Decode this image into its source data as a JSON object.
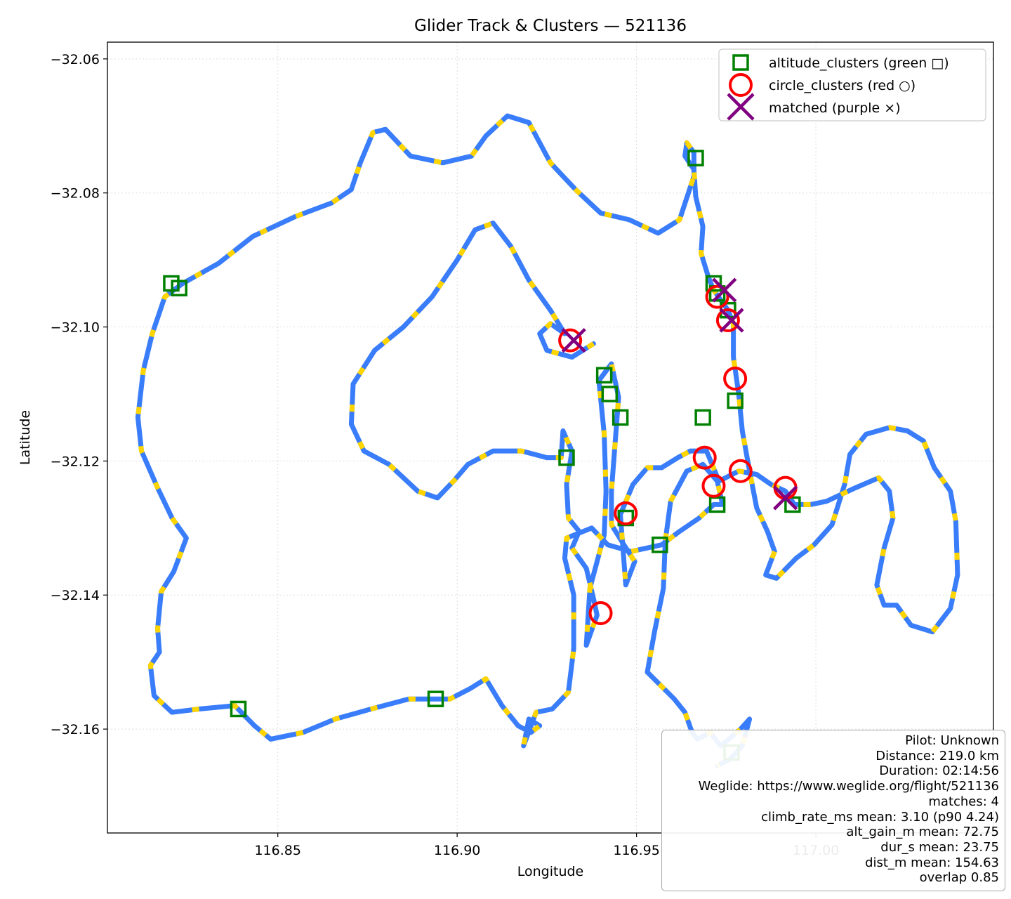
{
  "chart_data": {
    "type": "scatter",
    "title": "Glider Track & Clusters — 521136",
    "xlabel": "Longitude",
    "ylabel": "Latitude",
    "xlim": [
      116.8025,
      117.0495
    ],
    "ylim": [
      -32.1755,
      -32.0575
    ],
    "xticks": [
      "116.85",
      "116.90",
      "116.95",
      "117.00"
    ],
    "xtick_values": [
      116.85,
      116.9,
      116.95,
      117.0
    ],
    "yticks": [
      "−32.06",
      "−32.08",
      "−32.10",
      "−32.12",
      "−32.14",
      "−32.16"
    ],
    "ytick_values": [
      -32.06,
      -32.08,
      -32.1,
      -32.12,
      -32.14,
      -32.16
    ],
    "grid": true,
    "legend_position": "upper right",
    "track": {
      "colors": [
        "#3a7dfa",
        "#ffd500"
      ],
      "points": [
        [
          116.938,
          -32.1025
        ],
        [
          116.932,
          -32.1045
        ],
        [
          116.925,
          -32.1035
        ],
        [
          116.923,
          -32.101
        ],
        [
          116.926,
          -32.0995
        ],
        [
          116.93,
          -32.101
        ],
        [
          116.926,
          -32.0975
        ],
        [
          116.92,
          -32.093
        ],
        [
          116.915,
          -32.088
        ],
        [
          116.91,
          -32.0845
        ],
        [
          116.905,
          -32.0855
        ],
        [
          116.9,
          -32.09
        ],
        [
          116.893,
          -32.0955
        ],
        [
          116.885,
          -32.1
        ],
        [
          116.877,
          -32.1035
        ],
        [
          116.871,
          -32.1085
        ],
        [
          116.8705,
          -32.1145
        ],
        [
          116.874,
          -32.1185
        ],
        [
          116.881,
          -32.1205
        ],
        [
          116.889,
          -32.1245
        ],
        [
          116.8945,
          -32.1255
        ],
        [
          116.899,
          -32.123
        ],
        [
          116.903,
          -32.1205
        ],
        [
          116.91,
          -32.1185
        ],
        [
          116.918,
          -32.1185
        ],
        [
          116.925,
          -32.1195
        ],
        [
          116.929,
          -32.1195
        ],
        [
          116.9295,
          -32.1155
        ],
        [
          116.932,
          -32.1185
        ],
        [
          116.9305,
          -32.1235
        ],
        [
          116.931,
          -32.1285
        ],
        [
          116.934,
          -32.1305
        ],
        [
          116.932,
          -32.133
        ],
        [
          116.936,
          -32.136
        ],
        [
          116.938,
          -32.1405
        ],
        [
          116.939,
          -32.143
        ],
        [
          116.936,
          -32.1475
        ],
        [
          116.937,
          -32.139
        ],
        [
          116.941,
          -32.131
        ],
        [
          116.9415,
          -32.1245
        ],
        [
          116.941,
          -32.116
        ],
        [
          116.9395,
          -32.108
        ],
        [
          116.943,
          -32.1055
        ],
        [
          116.945,
          -32.1105
        ],
        [
          116.944,
          -32.1175
        ],
        [
          116.943,
          -32.1245
        ],
        [
          116.943,
          -32.1295
        ],
        [
          116.9465,
          -32.1325
        ],
        [
          116.9495,
          -32.135
        ],
        [
          116.947,
          -32.1385
        ],
        [
          116.9455,
          -32.128
        ],
        [
          116.949,
          -32.1235
        ],
        [
          116.953,
          -32.121
        ],
        [
          116.957,
          -32.121
        ],
        [
          116.9615,
          -32.1195
        ],
        [
          116.965,
          -32.1185
        ],
        [
          116.9695,
          -32.1185
        ],
        [
          116.973,
          -32.123
        ],
        [
          116.9785,
          -32.1215
        ],
        [
          116.9835,
          -32.122
        ],
        [
          116.9875,
          -32.1235
        ],
        [
          116.9915,
          -32.1245
        ],
        [
          116.994,
          -32.1265
        ],
        [
          116.9985,
          -32.1265
        ],
        [
          117.003,
          -32.126
        ],
        [
          117.011,
          -32.124
        ],
        [
          117.0175,
          -32.1225
        ],
        [
          117.0205,
          -32.1245
        ],
        [
          117.0215,
          -32.1285
        ],
        [
          117.019,
          -32.133
        ],
        [
          117.017,
          -32.1385
        ],
        [
          117.019,
          -32.1415
        ],
        [
          117.0225,
          -32.1415
        ],
        [
          117.0265,
          -32.1445
        ],
        [
          117.0325,
          -32.1455
        ],
        [
          117.0375,
          -32.142
        ],
        [
          117.0395,
          -32.137
        ],
        [
          117.039,
          -32.129
        ],
        [
          117.0375,
          -32.1245
        ],
        [
          117.033,
          -32.121
        ],
        [
          117.03,
          -32.117
        ],
        [
          117.0255,
          -32.1155
        ],
        [
          117.0205,
          -32.115
        ],
        [
          117.014,
          -32.116
        ],
        [
          117.0095,
          -32.119
        ],
        [
          117.008,
          -32.1235
        ],
        [
          117.0045,
          -32.1295
        ],
        [
          116.9995,
          -32.1325
        ],
        [
          116.9945,
          -32.1345
        ],
        [
          116.989,
          -32.1375
        ],
        [
          116.986,
          -32.137
        ],
        [
          116.9885,
          -32.1335
        ],
        [
          116.9865,
          -32.1305
        ],
        [
          116.9835,
          -32.127
        ],
        [
          116.9815,
          -32.1215
        ],
        [
          116.9795,
          -32.1155
        ],
        [
          116.9785,
          -32.11
        ],
        [
          116.977,
          -32.1045
        ],
        [
          116.977,
          -32.0995
        ],
        [
          116.9755,
          -32.0975
        ],
        [
          116.9735,
          -32.096
        ],
        [
          116.9715,
          -32.0945
        ],
        [
          116.97,
          -32.0925
        ],
        [
          116.968,
          -32.089
        ],
        [
          116.9685,
          -32.085
        ],
        [
          116.9665,
          -32.0805
        ],
        [
          116.966,
          -32.0765
        ],
        [
          116.9635,
          -32.0745
        ],
        [
          116.964,
          -32.0725
        ],
        [
          116.966,
          -32.074
        ],
        [
          116.966,
          -32.0775
        ],
        [
          116.962,
          -32.084
        ],
        [
          116.956,
          -32.086
        ],
        [
          116.948,
          -32.084
        ],
        [
          116.94,
          -32.083
        ],
        [
          116.933,
          -32.0795
        ],
        [
          116.926,
          -32.0755
        ],
        [
          116.92,
          -32.0695
        ],
        [
          116.914,
          -32.0685
        ],
        [
          116.908,
          -32.0715
        ],
        [
          116.904,
          -32.0745
        ],
        [
          116.896,
          -32.0755
        ],
        [
          116.887,
          -32.0745
        ],
        [
          116.88,
          -32.0705
        ],
        [
          116.8765,
          -32.071
        ],
        [
          116.873,
          -32.0755
        ],
        [
          116.8705,
          -32.0795
        ],
        [
          116.865,
          -32.0815
        ],
        [
          116.855,
          -32.0835
        ],
        [
          116.843,
          -32.0865
        ],
        [
          116.8335,
          -32.0905
        ],
        [
          116.8235,
          -32.0935
        ],
        [
          116.8185,
          -32.0955
        ],
        [
          116.815,
          -32.101
        ],
        [
          116.8125,
          -32.1065
        ],
        [
          116.811,
          -32.1135
        ],
        [
          116.812,
          -32.1185
        ],
        [
          116.8165,
          -32.124
        ],
        [
          116.8205,
          -32.1285
        ],
        [
          116.8245,
          -32.1315
        ],
        [
          116.821,
          -32.1365
        ],
        [
          116.8175,
          -32.1395
        ],
        [
          116.8165,
          -32.145
        ],
        [
          116.817,
          -32.1485
        ],
        [
          116.8145,
          -32.1505
        ],
        [
          116.8155,
          -32.155
        ],
        [
          116.8205,
          -32.1575
        ],
        [
          116.828,
          -32.157
        ],
        [
          116.838,
          -32.1565
        ],
        [
          116.8435,
          -32.1595
        ],
        [
          116.848,
          -32.1615
        ],
        [
          116.857,
          -32.1605
        ],
        [
          116.866,
          -32.1585
        ],
        [
          116.876,
          -32.157
        ],
        [
          116.8865,
          -32.1555
        ],
        [
          116.898,
          -32.1555
        ],
        [
          116.9035,
          -32.154
        ],
        [
          116.908,
          -32.1525
        ],
        [
          116.9125,
          -32.1565
        ],
        [
          116.917,
          -32.1595
        ],
        [
          116.9205,
          -32.1605
        ],
        [
          116.923,
          -32.1595
        ],
        [
          116.92,
          -32.1585
        ],
        [
          116.9185,
          -32.1625
        ],
        [
          116.922,
          -32.1575
        ],
        [
          116.9265,
          -32.157
        ],
        [
          116.931,
          -32.1545
        ],
        [
          116.9325,
          -32.148
        ],
        [
          116.9325,
          -32.14
        ],
        [
          116.93,
          -32.1345
        ],
        [
          116.9305,
          -32.1315
        ],
        [
          116.9375,
          -32.13
        ],
        [
          116.942,
          -32.1325
        ],
        [
          116.9485,
          -32.1335
        ],
        [
          116.957,
          -32.1325
        ],
        [
          116.962,
          -32.1305
        ],
        [
          116.9675,
          -32.1285
        ],
        [
          116.9715,
          -32.1265
        ],
        [
          116.974,
          -32.1265
        ],
        [
          116.9725,
          -32.123
        ],
        [
          116.9685,
          -32.1205
        ],
        [
          116.964,
          -32.1215
        ],
        [
          116.9595,
          -32.126
        ],
        [
          116.958,
          -32.132
        ],
        [
          116.9575,
          -32.139
        ],
        [
          116.955,
          -32.1455
        ],
        [
          116.953,
          -32.1515
        ],
        [
          116.9605,
          -32.1555
        ],
        [
          116.9635,
          -32.1575
        ],
        [
          116.9655,
          -32.1605
        ],
        [
          116.967,
          -32.1615
        ],
        [
          116.9705,
          -32.1605
        ],
        [
          116.9735,
          -32.1625
        ],
        [
          116.979,
          -32.16
        ],
        [
          116.9815,
          -32.1585
        ],
        [
          116.9795,
          -32.1625
        ],
        [
          116.976,
          -32.1645
        ],
        [
          116.9725,
          -32.1655
        ]
      ]
    },
    "altitude_clusters": [
      [
        116.8203,
        -32.0935
      ],
      [
        116.8225,
        -32.0942
      ],
      [
        116.839,
        -32.157
      ],
      [
        116.894,
        -32.1555
      ],
      [
        116.9665,
        -32.0748
      ],
      [
        116.9715,
        -32.0935
      ],
      [
        116.9725,
        -32.095
      ],
      [
        116.9755,
        -32.0975
      ],
      [
        116.9775,
        -32.111
      ],
      [
        116.941,
        -32.1072
      ],
      [
        116.9425,
        -32.11
      ],
      [
        116.9455,
        -32.1135
      ],
      [
        116.9305,
        -32.1195
      ],
      [
        116.9685,
        -32.1135
      ],
      [
        116.9725,
        -32.1265
      ],
      [
        116.947,
        -32.1285
      ],
      [
        116.9565,
        -32.1325
      ],
      [
        116.9935,
        -32.1265
      ],
      [
        116.9765,
        -32.1635
      ]
    ],
    "circle_clusters": [
      [
        116.9315,
        -32.102
      ],
      [
        116.9725,
        -32.0955
      ],
      [
        116.9755,
        -32.099
      ],
      [
        116.9775,
        -32.1077
      ],
      [
        116.969,
        -32.1195
      ],
      [
        116.979,
        -32.1215
      ],
      [
        116.9715,
        -32.1237
      ],
      [
        116.9915,
        -32.124
      ],
      [
        116.947,
        -32.1278
      ],
      [
        116.94,
        -32.1427
      ]
    ],
    "matched": [
      [
        116.9325,
        -32.102
      ],
      [
        116.9745,
        -32.0945
      ],
      [
        116.9765,
        -32.099
      ],
      [
        116.9915,
        -32.1255
      ]
    ],
    "legend": [
      {
        "label": "altitude_clusters (green □)",
        "color": "#008000",
        "marker": "square"
      },
      {
        "label": "circle_clusters (red ○)",
        "color": "#ff0000",
        "marker": "circle"
      },
      {
        "label": "matched (purple ×)",
        "color": "#800080",
        "marker": "x"
      }
    ]
  },
  "stats": {
    "lines": [
      "Pilot: Unknown",
      "Distance: 219.0 km",
      "Duration: 02:14:56",
      "Weglide: https://www.weglide.org/flight/521136",
      "matches: 4",
      "climb_rate_ms mean: 3.10 (p90 4.24)",
      "alt_gain_m mean: 72.75",
      "dur_s mean: 23.75",
      "dist_m mean: 154.63",
      "overlap 0.85"
    ]
  }
}
